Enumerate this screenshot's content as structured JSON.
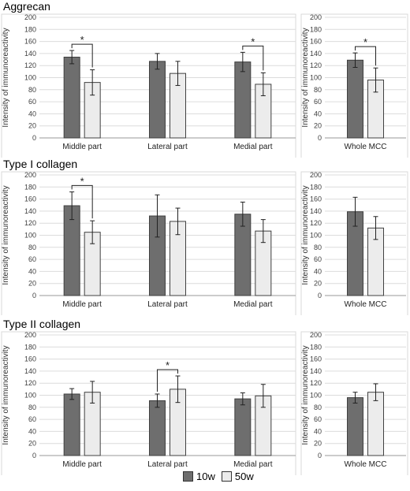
{
  "colors": {
    "10w": "#6e6e6e",
    "50w": "#ececec",
    "border": "#404040"
  },
  "chart_data": [
    {
      "type": "bar",
      "title": "Aggrecan",
      "ylabel": "Intensity of immunoreactivity",
      "ylim": [
        0,
        200
      ],
      "yticks": [
        0,
        20,
        40,
        60,
        80,
        100,
        120,
        140,
        160,
        180,
        200
      ],
      "grid": true,
      "left": {
        "categories": [
          "Middle part",
          "Lateral part",
          "Medial part"
        ],
        "series": [
          {
            "name": "10w",
            "values": [
              134,
              127,
              126
            ],
            "errors": [
              11,
              13,
              16
            ]
          },
          {
            "name": "50w",
            "values": [
              92,
              107,
              89
            ],
            "errors": [
              21,
              20,
              19
            ]
          }
        ],
        "significance": [
          {
            "category": "Middle part",
            "label": "*"
          },
          {
            "category": "Medial part",
            "label": "*"
          }
        ]
      },
      "right": {
        "categories": [
          "Whole MCC"
        ],
        "series": [
          {
            "name": "10w",
            "values": [
              129
            ],
            "errors": [
              12
            ]
          },
          {
            "name": "50w",
            "values": [
              96
            ],
            "errors": [
              20
            ]
          }
        ],
        "significance": [
          {
            "category": "Whole MCC",
            "label": "*"
          }
        ]
      }
    },
    {
      "type": "bar",
      "title": "Type I collagen",
      "ylabel": "Intensity of immunoreactivity",
      "ylim": [
        0,
        200
      ],
      "yticks": [
        0,
        20,
        40,
        60,
        80,
        100,
        120,
        140,
        160,
        180,
        200
      ],
      "grid": true,
      "left": {
        "categories": [
          "Middle part",
          "Lateral part",
          "Medial part"
        ],
        "series": [
          {
            "name": "10w",
            "values": [
              149,
              132,
              135
            ],
            "errors": [
              23,
              35,
              20
            ]
          },
          {
            "name": "50w",
            "values": [
              105,
              123,
              107
            ],
            "errors": [
              19,
              22,
              19
            ]
          }
        ],
        "significance": [
          {
            "category": "Middle part",
            "label": "*"
          }
        ]
      },
      "right": {
        "categories": [
          "Whole MCC"
        ],
        "series": [
          {
            "name": "10w",
            "values": [
              139
            ],
            "errors": [
              24
            ]
          },
          {
            "name": "50w",
            "values": [
              112
            ],
            "errors": [
              19
            ]
          }
        ],
        "significance": []
      }
    },
    {
      "type": "bar",
      "title": "Type II collagen",
      "ylabel": "Intensity of immunoreactivity",
      "ylim": [
        0,
        200
      ],
      "yticks": [
        0,
        20,
        40,
        60,
        80,
        100,
        120,
        140,
        160,
        180,
        200
      ],
      "grid": true,
      "left": {
        "categories": [
          "Middle part",
          "Lateral part",
          "Medial part"
        ],
        "series": [
          {
            "name": "10w",
            "values": [
              102,
              91,
              94
            ],
            "errors": [
              9,
              11,
              10
            ]
          },
          {
            "name": "50w",
            "values": [
              105,
              110,
              99
            ],
            "errors": [
              18,
              22,
              19
            ]
          }
        ],
        "significance": [
          {
            "category": "Lateral part",
            "label": "*"
          }
        ]
      },
      "right": {
        "categories": [
          "Whole MCC"
        ],
        "series": [
          {
            "name": "10w",
            "values": [
              96
            ],
            "errors": [
              9
            ]
          },
          {
            "name": "50w",
            "values": [
              105
            ],
            "errors": [
              14
            ]
          }
        ],
        "significance": []
      }
    }
  ],
  "legend": {
    "position": "bottom",
    "items": [
      {
        "label": "10w",
        "color": "#6e6e6e"
      },
      {
        "label": "50w",
        "color": "#ececec"
      }
    ]
  }
}
